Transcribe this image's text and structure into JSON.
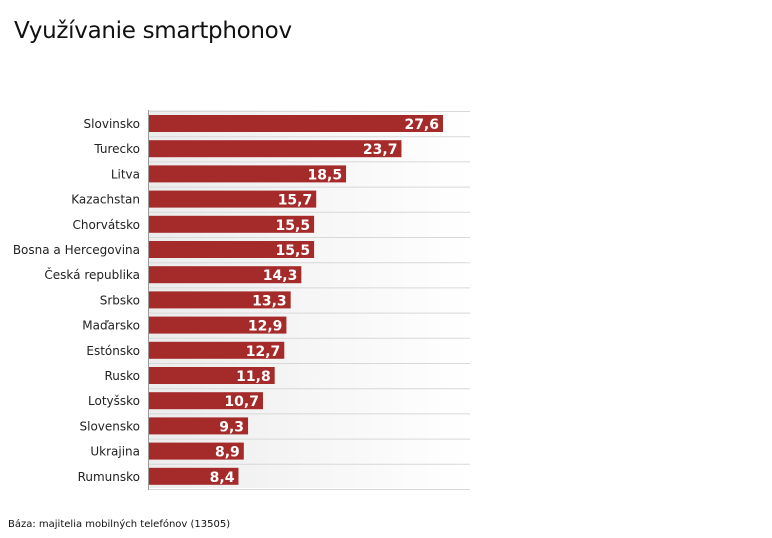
{
  "chart_data": {
    "type": "bar",
    "orientation": "horizontal",
    "title": "Využívanie smartphonov",
    "xlabel": "",
    "ylabel": "",
    "categories": [
      "Slovinsko",
      "Turecko",
      "Litva",
      "Kazachstan",
      "Chorvátsko",
      "Bosna a Hercegovina",
      "Česká republika",
      "Srbsko",
      "Maďarsko",
      "Estónsko",
      "Rusko",
      "Lotyšsko",
      "Slovensko",
      "Ukrajina",
      "Rumunsko"
    ],
    "values": [
      27.6,
      23.7,
      18.5,
      15.7,
      15.5,
      15.5,
      14.3,
      13.3,
      12.9,
      12.7,
      11.8,
      10.7,
      9.3,
      8.9,
      8.4
    ],
    "value_labels": [
      "27,6",
      "23,7",
      "18,5",
      "15,7",
      "15,5",
      "15,5",
      "14,3",
      "13,3",
      "12,9",
      "12,7",
      "11,8",
      "10,7",
      "9,3",
      "8,9",
      "8,4"
    ],
    "xlim": [
      0,
      30
    ],
    "grid": false,
    "legend": "none",
    "bar_color": "#a52a2a",
    "footnote": "Báza: majitelia mobilných telefónov (13505)"
  }
}
